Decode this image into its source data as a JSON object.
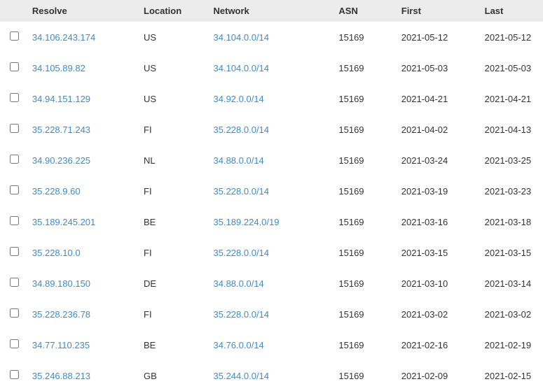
{
  "table": {
    "columns": {
      "resolve": "Resolve",
      "location": "Location",
      "network": "Network",
      "asn": "ASN",
      "first": "First",
      "last": "Last"
    },
    "rows": [
      {
        "resolve": "34.106.243.174",
        "location": "US",
        "network": "34.104.0.0/14",
        "asn": "15169",
        "first": "2021-05-12",
        "last": "2021-05-12"
      },
      {
        "resolve": "34.105.89.82",
        "location": "US",
        "network": "34.104.0.0/14",
        "asn": "15169",
        "first": "2021-05-03",
        "last": "2021-05-03"
      },
      {
        "resolve": "34.94.151.129",
        "location": "US",
        "network": "34.92.0.0/14",
        "asn": "15169",
        "first": "2021-04-21",
        "last": "2021-04-21"
      },
      {
        "resolve": "35.228.71.243",
        "location": "FI",
        "network": "35.228.0.0/14",
        "asn": "15169",
        "first": "2021-04-02",
        "last": "2021-04-13"
      },
      {
        "resolve": "34.90.236.225",
        "location": "NL",
        "network": "34.88.0.0/14",
        "asn": "15169",
        "first": "2021-03-24",
        "last": "2021-03-25"
      },
      {
        "resolve": "35.228.9.60",
        "location": "FI",
        "network": "35.228.0.0/14",
        "asn": "15169",
        "first": "2021-03-19",
        "last": "2021-03-23"
      },
      {
        "resolve": "35.189.245.201",
        "location": "BE",
        "network": "35.189.224.0/19",
        "asn": "15169",
        "first": "2021-03-16",
        "last": "2021-03-18"
      },
      {
        "resolve": "35.228.10.0",
        "location": "FI",
        "network": "35.228.0.0/14",
        "asn": "15169",
        "first": "2021-03-15",
        "last": "2021-03-15"
      },
      {
        "resolve": "34.89.180.150",
        "location": "DE",
        "network": "34.88.0.0/14",
        "asn": "15169",
        "first": "2021-03-10",
        "last": "2021-03-14"
      },
      {
        "resolve": "35.228.236.78",
        "location": "FI",
        "network": "35.228.0.0/14",
        "asn": "15169",
        "first": "2021-03-02",
        "last": "2021-03-02"
      },
      {
        "resolve": "34.77.110.235",
        "location": "BE",
        "network": "34.76.0.0/14",
        "asn": "15169",
        "first": "2021-02-16",
        "last": "2021-02-19"
      },
      {
        "resolve": "35.246.88.213",
        "location": "GB",
        "network": "35.244.0.0/14",
        "asn": "15169",
        "first": "2021-02-09",
        "last": "2021-02-15"
      }
    ]
  },
  "colors": {
    "link": "#378dd4",
    "header_bg": "#ececec",
    "text": "#333333"
  }
}
